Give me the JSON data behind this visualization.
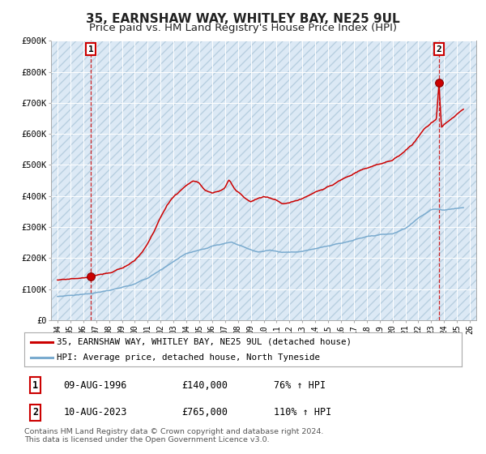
{
  "title": "35, EARNSHAW WAY, WHITLEY BAY, NE25 9UL",
  "subtitle": "Price paid vs. HM Land Registry's House Price Index (HPI)",
  "title_fontsize": 11,
  "subtitle_fontsize": 9.5,
  "background_color": "#ffffff",
  "plot_bg_color": "#dce9f5",
  "hatch_color": "#b8cfe0",
  "red_line_color": "#cc0000",
  "blue_line_color": "#7aabcf",
  "ylim": [
    0,
    900000
  ],
  "yticks": [
    0,
    100000,
    200000,
    300000,
    400000,
    500000,
    600000,
    700000,
    800000,
    900000
  ],
  "ytick_labels": [
    "£0",
    "£100K",
    "£200K",
    "£300K",
    "£400K",
    "£500K",
    "£600K",
    "£700K",
    "£800K",
    "£900K"
  ],
  "xlim": [
    1993.5,
    2026.5
  ],
  "marker1_year": 1996.6,
  "marker1_value": 140000,
  "marker2_year": 2023.6,
  "marker2_value": 765000,
  "vline1_year": 1996.6,
  "vline2_year": 2023.6,
  "legend_entry1": "35, EARNSHAW WAY, WHITLEY BAY, NE25 9UL (detached house)",
  "legend_entry2": "HPI: Average price, detached house, North Tyneside",
  "table_row1": [
    "1",
    "09-AUG-1996",
    "£140,000",
    "76% ↑ HPI"
  ],
  "table_row2": [
    "2",
    "10-AUG-2023",
    "£765,000",
    "110% ↑ HPI"
  ],
  "footer": "Contains HM Land Registry data © Crown copyright and database right 2024.\nThis data is licensed under the Open Government Licence v3.0.",
  "grid_color": "#ffffff",
  "tick_fontsize": 7.5
}
